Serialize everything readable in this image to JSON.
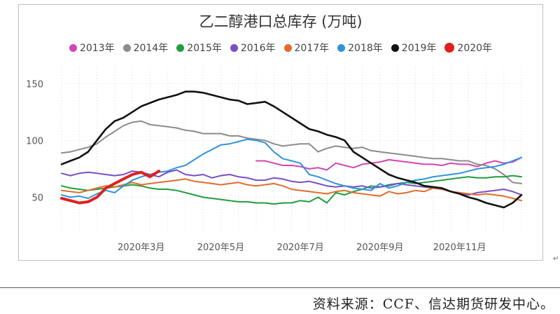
{
  "source_note": "资料来源：CCF、信达期货研发中心。",
  "corner_mark": "↵",
  "chart_data": {
    "type": "line",
    "title": "乙二醇港口总库存 (万吨)",
    "xlabel": "",
    "ylabel": "",
    "ylim": [
      20,
      165
    ],
    "yticks": [
      50,
      100,
      150
    ],
    "x_range": [
      0,
      52
    ],
    "x_ticks": [
      {
        "week": 9,
        "label": "2020年3月"
      },
      {
        "week": 18,
        "label": "2020年5月"
      },
      {
        "week": 27,
        "label": "2020年7月"
      },
      {
        "week": 36,
        "label": "2020年9月"
      },
      {
        "week": 45,
        "label": "2020年11月"
      }
    ],
    "grid": true,
    "legend_position": "top",
    "series": [
      {
        "name": "2013年",
        "color": "#d444b5",
        "width": 2,
        "start_week": 22,
        "values": [
          82,
          82,
          80,
          78,
          78,
          77,
          75,
          76,
          74,
          80,
          78,
          76,
          79,
          80,
          81,
          83,
          82,
          81,
          80,
          79,
          79,
          78,
          80,
          79,
          79,
          77,
          80,
          82,
          80,
          81,
          85
        ]
      },
      {
        "name": "2014年",
        "color": "#8c8c8c",
        "width": 2,
        "start_week": 0,
        "values": [
          89,
          90,
          92,
          94,
          97,
          103,
          108,
          113,
          116,
          117,
          114,
          113,
          112,
          111,
          109,
          108,
          106,
          106,
          106,
          104,
          104,
          102,
          101,
          100,
          97,
          95,
          96,
          97,
          97,
          90,
          93,
          95,
          94,
          93,
          94,
          91,
          90,
          89,
          88,
          87,
          86,
          85,
          84,
          84,
          83,
          82,
          82,
          79,
          78,
          75,
          70,
          63,
          62
        ]
      },
      {
        "name": "2015年",
        "color": "#1f9e3e",
        "width": 2,
        "start_week": 0,
        "values": [
          60,
          58,
          57,
          56,
          57,
          58,
          59,
          60,
          61,
          60,
          58,
          57,
          57,
          56,
          54,
          52,
          50,
          49,
          48,
          47,
          46,
          46,
          45,
          45,
          44,
          45,
          45,
          47,
          46,
          50,
          45,
          54,
          52,
          55,
          57,
          60,
          59,
          61,
          62,
          63,
          62,
          63,
          64,
          65,
          66,
          67,
          68,
          67,
          67,
          68,
          68,
          69,
          68
        ]
      },
      {
        "name": "2016年",
        "color": "#7a4ec5",
        "width": 2,
        "start_week": 0,
        "values": [
          71,
          69,
          71,
          72,
          71,
          70,
          69,
          70,
          73,
          72,
          70,
          68,
          72,
          74,
          70,
          69,
          70,
          67,
          69,
          70,
          68,
          67,
          65,
          65,
          67,
          66,
          64,
          63,
          64,
          62,
          60,
          59,
          60,
          59,
          60,
          58,
          59,
          60,
          62,
          61,
          60,
          59,
          58,
          57,
          55,
          53,
          52,
          54,
          55,
          56,
          57,
          55,
          52
        ]
      },
      {
        "name": "2017年",
        "color": "#e06d2e",
        "width": 2,
        "start_week": 0,
        "values": [
          56,
          55,
          54,
          56,
          58,
          60,
          59,
          61,
          63,
          61,
          62,
          63,
          64,
          65,
          66,
          64,
          63,
          62,
          61,
          62,
          63,
          61,
          60,
          61,
          62,
          60,
          57,
          56,
          55,
          54,
          53,
          55,
          56,
          54,
          53,
          52,
          51,
          55,
          53,
          54,
          56,
          55,
          58,
          57,
          55,
          54,
          53,
          52,
          53,
          52,
          51,
          49,
          47
        ]
      },
      {
        "name": "2018年",
        "color": "#2f93e0",
        "width": 2,
        "start_week": 0,
        "values": [
          52,
          50,
          51,
          49,
          53,
          56,
          54,
          60,
          65,
          68,
          70,
          72,
          73,
          76,
          78,
          83,
          88,
          92,
          96,
          97,
          99,
          101,
          100,
          98,
          90,
          84,
          82,
          80,
          70,
          68,
          65,
          62,
          60,
          58,
          57,
          56,
          62,
          58,
          60,
          63,
          65,
          66,
          68,
          69,
          70,
          71,
          73,
          75,
          76,
          77,
          79,
          82,
          85
        ]
      },
      {
        "name": "2019年",
        "color": "#111111",
        "width": 2.6,
        "start_week": 0,
        "values": [
          79,
          82,
          85,
          90,
          100,
          110,
          117,
          120,
          125,
          130,
          133,
          136,
          138,
          140,
          143,
          143,
          142,
          140,
          138,
          136,
          135,
          132,
          133,
          134,
          130,
          125,
          120,
          115,
          110,
          108,
          105,
          103,
          100,
          90,
          85,
          80,
          75,
          70,
          67,
          65,
          63,
          60,
          59,
          58,
          55,
          53,
          50,
          48,
          45,
          43,
          41,
          45,
          52
        ]
      },
      {
        "name": "2020年",
        "color": "#e0201b",
        "width": 4,
        "start_week": 0,
        "values": [
          49,
          47,
          45,
          46,
          50,
          58,
          62,
          66,
          70,
          72,
          68,
          73
        ]
      }
    ]
  }
}
